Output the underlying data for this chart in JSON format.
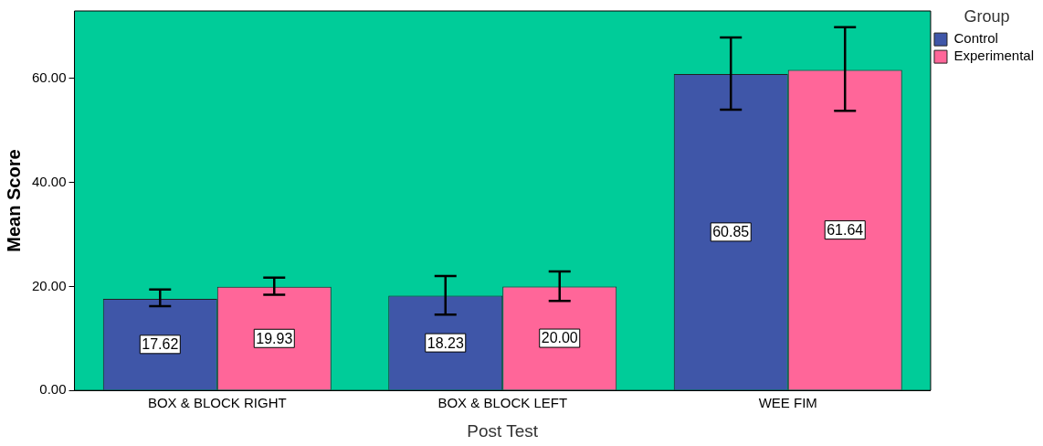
{
  "chart_data": {
    "type": "bar",
    "xlabel": "Post Test",
    "ylabel": "Mean Score",
    "legend_title": "Group",
    "categories": [
      "BOX & BLOCK RIGHT",
      "BOX & BLOCK LEFT",
      "WEE FIM"
    ],
    "series": [
      {
        "name": "Control",
        "color": "#3f56a8",
        "values": [
          17.62,
          18.23,
          60.85
        ],
        "value_labels": [
          "17.62",
          "18.23",
          "60.85"
        ],
        "errors": [
          [
            16.2,
            19.4
          ],
          [
            14.6,
            22.0
          ],
          [
            54.0,
            67.9
          ]
        ]
      },
      {
        "name": "Experimental",
        "color": "#ff6699",
        "values": [
          19.93,
          20.0,
          61.64
        ],
        "value_labels": [
          "19.93",
          "20.00",
          "61.64"
        ],
        "errors": [
          [
            18.4,
            21.7
          ],
          [
            17.2,
            22.9
          ],
          [
            53.8,
            69.9
          ]
        ]
      }
    ],
    "ylim": [
      0,
      73
    ],
    "yticks": [
      {
        "value": 0,
        "label": "0.00"
      },
      {
        "value": 20,
        "label": "20.00"
      },
      {
        "value": 40,
        "label": "40.00"
      },
      {
        "value": 60,
        "label": "60.00"
      }
    ],
    "grid": false,
    "legend": "top right"
  }
}
